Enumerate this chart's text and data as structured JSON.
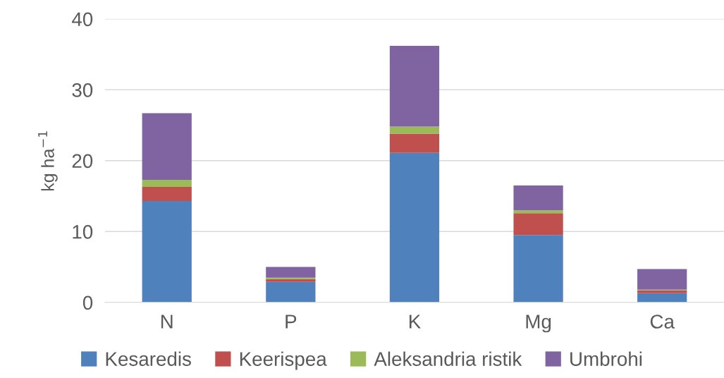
{
  "chart_data": {
    "type": "bar",
    "stacked": true,
    "ylabel": "kg ha$^{−1}$",
    "categories": [
      "N",
      "P",
      "K",
      "Mg",
      "Ca"
    ],
    "series": [
      {
        "name": "Kesaredis",
        "color": "#4f81bd",
        "values": [
          14.3,
          2.9,
          21.1,
          9.5,
          1.3
        ]
      },
      {
        "name": "Keerispea",
        "color": "#c0504d",
        "values": [
          2.0,
          0.4,
          2.7,
          3.1,
          0.4
        ]
      },
      {
        "name": "Aleksandria ristik",
        "color": "#9bbb59",
        "values": [
          1.0,
          0.2,
          1.0,
          0.4,
          0.1
        ]
      },
      {
        "name": "Umbrohi",
        "color": "#8064a2",
        "values": [
          9.4,
          1.5,
          11.4,
          3.5,
          2.9
        ]
      }
    ],
    "ylim": [
      0,
      40
    ],
    "yticks": [
      0,
      10,
      20,
      30,
      40
    ],
    "grid": "y",
    "legend": "bottom"
  }
}
